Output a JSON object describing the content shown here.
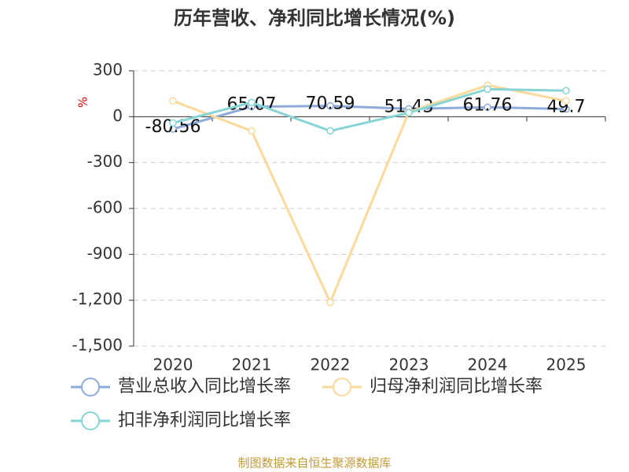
{
  "chart_data": {
    "type": "line",
    "title": "历年营收、净利同比增长情况(%)",
    "y_label": "%",
    "categories": [
      "2020",
      "2021",
      "2022",
      "2023",
      "2024",
      "2025"
    ],
    "series": [
      {
        "name": "营业总收入同比增长率",
        "color": "#8eaadb",
        "values": [
          -80.56,
          65.07,
          70.59,
          51.43,
          61.76,
          49.7
        ],
        "show_labels": true
      },
      {
        "name": "归母净利润同比增长率",
        "color": "#fbd99b",
        "values": [
          103,
          -93,
          -1214,
          31,
          206,
          103
        ],
        "show_labels": false
      },
      {
        "name": "扣非净利润同比增长率",
        "color": "#86d4d4",
        "values": [
          -41,
          93,
          -93,
          26,
          180,
          170
        ],
        "show_labels": false
      }
    ],
    "ylim": [
      -1500,
      300
    ],
    "yticks": [
      300,
      0,
      -300,
      -600,
      -900,
      {
        "value": -1200,
        "label": "-1,200"
      },
      {
        "value": -1500,
        "label": "-1,500"
      }
    ],
    "grid": true,
    "footer": "制图数据来自恒生聚源数据库"
  }
}
